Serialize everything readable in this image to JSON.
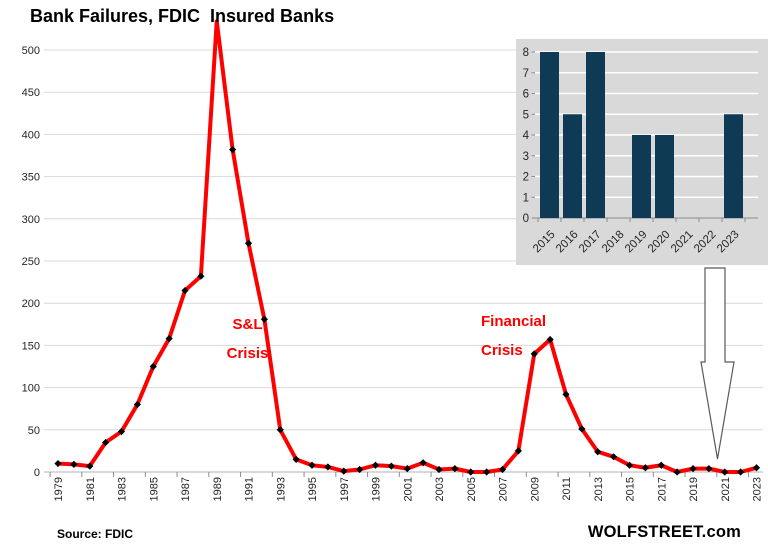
{
  "title": "Bank Failures, FDIC  Insured Banks",
  "source_label": "Source: FDIC",
  "branding": "WOLFSTREET.com",
  "annotations": {
    "sl_crisis_line1": "S&L",
    "sl_crisis_line2": "Crisis",
    "fin_crisis_line1": "Financial",
    "fin_crisis_line2": "Crisis"
  },
  "colors": {
    "line": "#fe0000",
    "marker": "#000000",
    "grid": "#d9d9d9",
    "axis_line": "#b3b3b3",
    "tick": "#8c8c8c",
    "axis_text": "#262626",
    "inset_bg": "#d9d9d9",
    "inset_bar": "#0e3a56",
    "inset_grid": "#ffffff",
    "annotation": "#fe0000",
    "arrow_fill": "#ffffff",
    "arrow_stroke": "#595959"
  },
  "chart_data": [
    {
      "type": "line",
      "title": "Bank Failures, FDIC  Insured Banks",
      "xlabel": "",
      "ylabel": "",
      "ylim": [
        0,
        500
      ],
      "ytick_step": 50,
      "xtick_label_every": 2,
      "grid": true,
      "legend": "none",
      "x": [
        1979,
        1980,
        1981,
        1982,
        1983,
        1984,
        1985,
        1986,
        1987,
        1988,
        1989,
        1990,
        1991,
        1992,
        1993,
        1994,
        1995,
        1996,
        1997,
        1998,
        1999,
        2000,
        2001,
        2002,
        2003,
        2004,
        2005,
        2006,
        2007,
        2008,
        2009,
        2010,
        2011,
        2012,
        2013,
        2014,
        2015,
        2016,
        2017,
        2018,
        2019,
        2020,
        2021,
        2022,
        2023
      ],
      "values": [
        10,
        9,
        7,
        35,
        48,
        80,
        125,
        158,
        215,
        232,
        534,
        382,
        271,
        181,
        50,
        15,
        8,
        6,
        1,
        3,
        8,
        7,
        4,
        11,
        3,
        4,
        0,
        0,
        3,
        25,
        140,
        157,
        92,
        51,
        24,
        18,
        8,
        5,
        8,
        0,
        4,
        4,
        0,
        0,
        5
      ],
      "annotations": [
        "S&L Crisis at 1992",
        "Financial Crisis at 2008-2009"
      ]
    },
    {
      "type": "bar",
      "title": "",
      "xlabel": "",
      "ylabel": "",
      "ylim": [
        0,
        8
      ],
      "ytick_step": 1,
      "grid": true,
      "legend": "none",
      "categories": [
        "2015",
        "2016",
        "2017",
        "2018",
        "2019",
        "2020",
        "2021",
        "2022",
        "2023"
      ],
      "values": [
        8,
        5,
        8,
        0,
        4,
        4,
        0,
        0,
        5
      ]
    }
  ]
}
